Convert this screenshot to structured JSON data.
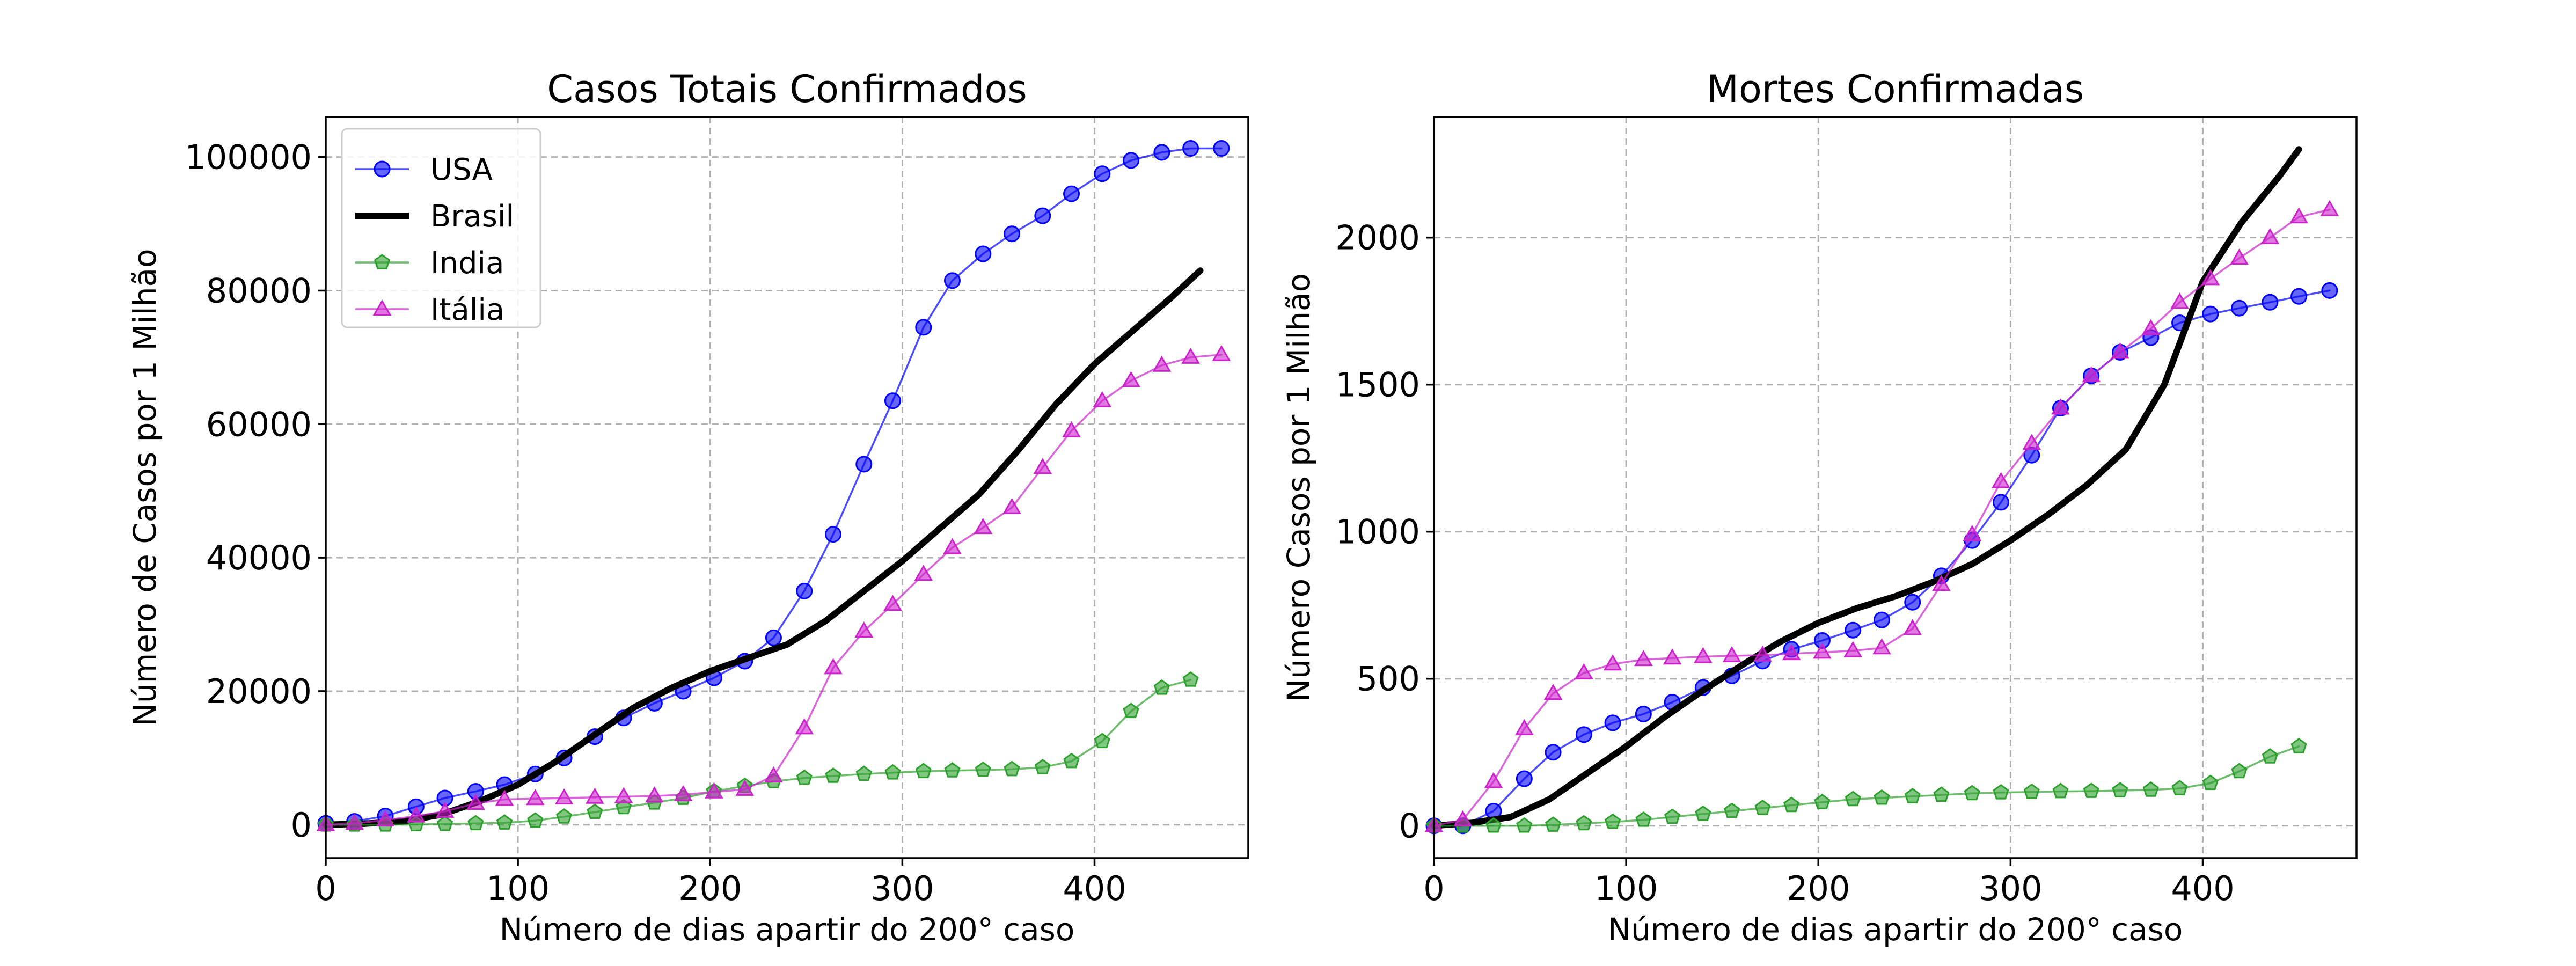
{
  "chart_data": [
    {
      "type": "line",
      "title": "Casos Totais Confirmados",
      "xlabel": "Número de dias apartir do 200° caso",
      "ylabel": "Número de Casos por 1 Milhão",
      "xlim": [
        0,
        480
      ],
      "ylim": [
        -5000,
        106000
      ],
      "xticks": [
        0,
        100,
        200,
        300,
        400
      ],
      "yticks": [
        0,
        20000,
        40000,
        60000,
        80000,
        100000
      ],
      "grid": true,
      "legend": "top-left",
      "series": [
        {
          "name": "USA",
          "color": "#0000ff",
          "marker": "circle",
          "x": [
            0,
            15,
            31,
            47,
            62,
            78,
            93,
            109,
            124,
            140,
            155,
            171,
            186,
            202,
            218,
            233,
            249,
            264,
            280,
            295,
            311,
            326,
            342,
            357,
            373,
            388,
            404,
            419,
            435,
            450,
            466
          ],
          "y": [
            200,
            500,
            1300,
            2700,
            4000,
            5000,
            6000,
            7600,
            10000,
            13200,
            16000,
            18200,
            20000,
            22000,
            24500,
            28000,
            35000,
            43500,
            54000,
            63500,
            74500,
            81500,
            85500,
            88500,
            91200,
            94500,
            97500,
            99500,
            100700,
            101300,
            101300
          ]
        },
        {
          "name": "Brasil",
          "color": "#000000",
          "marker": "none",
          "x": [
            0,
            20,
            40,
            60,
            80,
            100,
            120,
            140,
            160,
            180,
            200,
            220,
            240,
            260,
            280,
            300,
            320,
            340,
            360,
            380,
            400,
            420,
            440,
            455
          ],
          "y": [
            0,
            150,
            500,
            1500,
            3500,
            6000,
            9500,
            13500,
            17500,
            20500,
            23000,
            25000,
            27000,
            30500,
            35000,
            39500,
            44500,
            49500,
            56000,
            63000,
            69000,
            74000,
            79000,
            83000
          ]
        },
        {
          "name": "India",
          "color": "#2ca02c",
          "marker": "pentagon",
          "x": [
            0,
            15,
            31,
            47,
            62,
            78,
            93,
            109,
            124,
            140,
            155,
            171,
            186,
            202,
            218,
            233,
            249,
            264,
            280,
            295,
            311,
            326,
            342,
            357,
            373,
            388,
            404,
            419,
            435,
            450
          ],
          "y": [
            0,
            0,
            0,
            50,
            100,
            200,
            300,
            600,
            1200,
            1900,
            2600,
            3300,
            4000,
            5000,
            5800,
            6500,
            7000,
            7300,
            7600,
            7800,
            8000,
            8100,
            8200,
            8300,
            8600,
            9500,
            12500,
            17000,
            20500,
            21700
          ]
        },
        {
          "name": "Itália",
          "color": "#cc22cc",
          "marker": "triangle",
          "x": [
            0,
            15,
            31,
            47,
            62,
            78,
            93,
            109,
            124,
            140,
            155,
            171,
            186,
            202,
            218,
            233,
            249,
            264,
            280,
            295,
            311,
            326,
            342,
            357,
            373,
            388,
            404,
            419,
            435,
            450,
            466
          ],
          "y": [
            0,
            200,
            700,
            1300,
            2000,
            3200,
            3800,
            3900,
            4000,
            4100,
            4200,
            4300,
            4500,
            4900,
            5300,
            7300,
            14500,
            23500,
            29000,
            33000,
            37500,
            41500,
            44500,
            47500,
            53500,
            59000,
            63500,
            66500,
            68800,
            70000,
            70400
          ]
        }
      ]
    },
    {
      "type": "line",
      "title": "Mortes Confirmadas",
      "xlabel": "Número de dias apartir do 200° caso",
      "ylabel": "Número Casos por 1 Milhão",
      "xlim": [
        0,
        480
      ],
      "ylim": [
        -110,
        2410
      ],
      "xticks": [
        0,
        100,
        200,
        300,
        400
      ],
      "yticks": [
        0,
        500,
        1000,
        1500,
        2000
      ],
      "grid": true,
      "legend": "none",
      "series": [
        {
          "name": "USA",
          "color": "#0000ff",
          "marker": "circle",
          "x": [
            0,
            15,
            31,
            47,
            62,
            78,
            93,
            109,
            124,
            140,
            155,
            171,
            186,
            202,
            218,
            233,
            249,
            264,
            280,
            295,
            311,
            326,
            342,
            357,
            373,
            388,
            404,
            419,
            435,
            450,
            466
          ],
          "y": [
            0,
            0,
            50,
            160,
            250,
            310,
            350,
            380,
            420,
            470,
            510,
            560,
            600,
            630,
            665,
            700,
            760,
            850,
            970,
            1100,
            1260,
            1420,
            1530,
            1610,
            1660,
            1710,
            1740,
            1760,
            1780,
            1800,
            1820
          ]
        },
        {
          "name": "Brasil",
          "color": "#000000",
          "marker": "none",
          "x": [
            0,
            20,
            40,
            60,
            80,
            100,
            120,
            140,
            160,
            180,
            200,
            220,
            240,
            260,
            280,
            300,
            320,
            340,
            360,
            380,
            400,
            420,
            440,
            450
          ],
          "y": [
            0,
            10,
            30,
            90,
            180,
            270,
            370,
            460,
            545,
            625,
            690,
            740,
            780,
            830,
            890,
            970,
            1060,
            1160,
            1280,
            1500,
            1850,
            2050,
            2210,
            2300
          ]
        },
        {
          "name": "India",
          "color": "#2ca02c",
          "marker": "pentagon",
          "x": [
            0,
            15,
            31,
            47,
            62,
            78,
            93,
            109,
            124,
            140,
            155,
            171,
            186,
            202,
            218,
            233,
            249,
            264,
            280,
            295,
            311,
            326,
            342,
            357,
            373,
            388,
            404,
            419,
            435,
            450
          ],
          "y": [
            0,
            0,
            0,
            0,
            3,
            8,
            13,
            20,
            30,
            40,
            50,
            60,
            70,
            80,
            90,
            95,
            100,
            105,
            110,
            113,
            115,
            117,
            118,
            120,
            122,
            127,
            145,
            185,
            235,
            270
          ]
        },
        {
          "name": "Itália",
          "color": "#cc22cc",
          "marker": "triangle",
          "x": [
            0,
            15,
            31,
            47,
            62,
            78,
            93,
            109,
            124,
            140,
            155,
            171,
            186,
            202,
            218,
            233,
            249,
            264,
            280,
            295,
            311,
            326,
            342,
            357,
            373,
            388,
            404,
            419,
            435,
            450,
            466
          ],
          "y": [
            0,
            20,
            150,
            330,
            450,
            520,
            550,
            565,
            570,
            575,
            578,
            580,
            585,
            590,
            595,
            605,
            670,
            820,
            990,
            1170,
            1300,
            1420,
            1530,
            1610,
            1690,
            1780,
            1860,
            1930,
            2000,
            2070,
            2095
          ]
        }
      ]
    }
  ]
}
